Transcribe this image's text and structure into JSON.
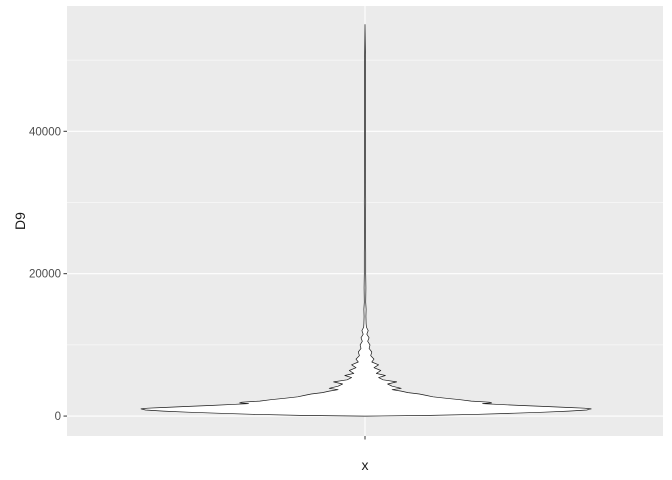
{
  "chart_data": {
    "type": "violin",
    "xlabel": "x",
    "ylabel": "D9",
    "categories": [
      "x"
    ],
    "ylim": [
      -2800,
      57600
    ],
    "yticks": [
      0,
      20000,
      40000
    ],
    "ytick_labels": [
      "0",
      "20000",
      "40000"
    ],
    "grid": true,
    "panel_background": "#ebebeb",
    "grid_color": "#ffffff",
    "outline_color": "#1a1a1a",
    "violin_profile": {
      "y": [
        0,
        100,
        250,
        400,
        550,
        700,
        850,
        1000,
        1100,
        1200,
        1350,
        1500,
        1650,
        1750,
        1850,
        1950,
        2100,
        2300,
        2500,
        2700,
        2900,
        3100,
        3300,
        3500,
        3700,
        3900,
        4200,
        4500,
        4800,
        5100,
        5400,
        5700,
        6000,
        6400,
        6800,
        7200,
        7600,
        8000,
        8500,
        9000,
        9500,
        10000,
        10500,
        11000,
        11500,
        12000,
        12500,
        13000,
        14000,
        15000,
        16000,
        18000,
        20000,
        23000,
        26000,
        30000,
        35000,
        40000,
        45000,
        50000,
        55000
      ],
      "width": [
        0.0,
        0.29,
        0.5,
        0.66,
        0.79,
        0.9,
        0.98,
        1.0,
        0.97,
        0.9,
        0.8,
        0.68,
        0.58,
        0.52,
        0.56,
        0.55,
        0.47,
        0.42,
        0.36,
        0.3,
        0.27,
        0.24,
        0.19,
        0.16,
        0.12,
        0.16,
        0.12,
        0.1,
        0.14,
        0.08,
        0.06,
        0.09,
        0.05,
        0.07,
        0.04,
        0.06,
        0.03,
        0.04,
        0.025,
        0.03,
        0.018,
        0.022,
        0.012,
        0.018,
        0.008,
        0.014,
        0.006,
        0.005,
        0.004,
        0.005,
        0.003,
        0.004,
        0.003,
        0.003,
        0.002,
        0.003,
        0.002,
        0.002,
        0.002,
        0.002,
        0.0
      ]
    }
  }
}
